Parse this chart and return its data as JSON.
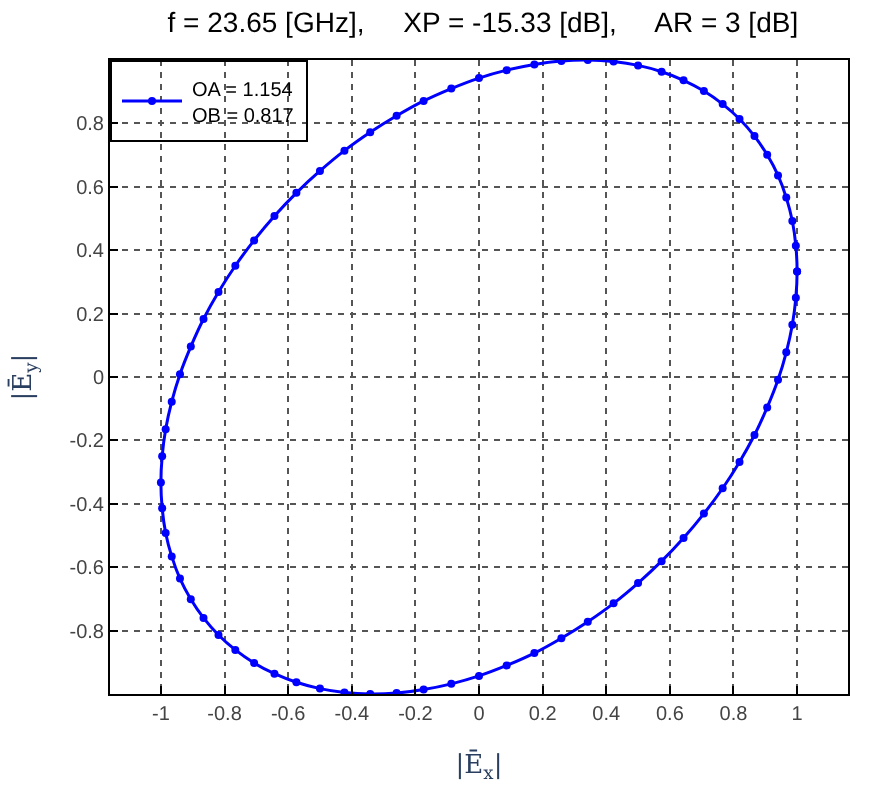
{
  "chart_data": {
    "type": "scatter",
    "title": "f = 23.65 [GHz],     XP = -15.33 [dB],     AR = 3 [dB]",
    "xlabel": "|Ē$_{x}$|",
    "ylabel": "|Ē$_{y}$|",
    "series": [
      {
        "name": "OA = 1.154\nOB = 0.817",
        "color": "#0000ff",
        "x": [
          1.0,
          0.996,
          0.985,
          0.966,
          0.94,
          0.906,
          0.866,
          0.819,
          0.766,
          0.707,
          0.643,
          0.574,
          0.5,
          0.423,
          0.342,
          0.259,
          0.174,
          0.087,
          0.0,
          -0.087,
          -0.174,
          -0.259,
          -0.342,
          -0.423,
          -0.5,
          -0.574,
          -0.643,
          -0.707,
          -0.766,
          -0.819,
          -0.866,
          -0.906,
          -0.94,
          -0.966,
          -0.985,
          -0.996,
          -1.0,
          -0.996,
          -0.985,
          -0.966,
          -0.94,
          -0.906,
          -0.866,
          -0.819,
          -0.766,
          -0.707,
          -0.643,
          -0.574,
          -0.5,
          -0.423,
          -0.342,
          -0.259,
          -0.174,
          -0.087,
          0.0,
          0.087,
          0.174,
          0.259,
          0.342,
          0.423,
          0.5,
          0.574,
          0.643,
          0.707,
          0.766,
          0.819,
          0.866,
          0.906,
          0.94,
          0.966,
          0.985,
          0.996,
          1.0
        ],
        "values": [
          0.333,
          0.414,
          0.492,
          0.566,
          0.636,
          0.701,
          0.76,
          0.814,
          0.861,
          0.902,
          0.936,
          0.963,
          0.983,
          0.995,
          1.0,
          0.997,
          0.986,
          0.968,
          0.943,
          0.91,
          0.871,
          0.824,
          0.772,
          0.714,
          0.65,
          0.581,
          0.508,
          0.431,
          0.351,
          0.268,
          0.183,
          0.096,
          0.009,
          -0.078,
          -0.165,
          -0.25,
          -0.333,
          -0.414,
          -0.492,
          -0.566,
          -0.636,
          -0.701,
          -0.76,
          -0.814,
          -0.861,
          -0.902,
          -0.936,
          -0.963,
          -0.983,
          -0.995,
          -1.0,
          -0.997,
          -0.986,
          -0.968,
          -0.943,
          -0.91,
          -0.871,
          -0.824,
          -0.772,
          -0.714,
          -0.65,
          -0.581,
          -0.508,
          -0.431,
          -0.351,
          -0.268,
          -0.183,
          -0.096,
          -0.009,
          0.078,
          0.165,
          0.25,
          0.333
        ]
      }
    ],
    "xlim": [
      -1.16,
      1.16
    ],
    "ylim": [
      -1,
      1
    ],
    "xticks": [
      -1,
      -0.8,
      -0.6,
      -0.4,
      -0.2,
      0,
      0.2,
      0.4,
      0.6,
      0.8,
      1
    ],
    "yticks": [
      -0.8,
      -0.6,
      -0.4,
      -0.2,
      0,
      0.2,
      0.4,
      0.6,
      0.8
    ],
    "grid": true,
    "legend": "top left",
    "line_style": "solid",
    "marker": "circle"
  }
}
